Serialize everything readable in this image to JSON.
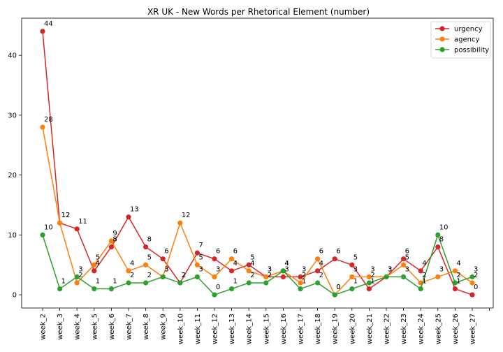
{
  "chart_data": {
    "type": "line",
    "title": "XR UK - New Words per Rhetorical Element (number)",
    "xlabel": "",
    "ylabel": "",
    "ylim": [
      -2.2,
      46.2
    ],
    "yticks": [
      0,
      10,
      20,
      30,
      40
    ],
    "grid": false,
    "legend_position": "top-right",
    "categories": [
      "week_2",
      "week_3",
      "week_4",
      "week_5",
      "week_6",
      "week_7",
      "week_8",
      "week_9",
      "week_10",
      "week_11",
      "week_12",
      "week_13",
      "week_14",
      "week_15",
      "week_16",
      "week_17",
      "week_18",
      "week_19",
      "week_20",
      "week_21",
      "week_22",
      "week_23",
      "week_24",
      "week_25",
      "week_26",
      "week_27"
    ],
    "series": [
      {
        "name": "urgency",
        "color": "#d62728",
        "values": [
          44,
          12,
          11,
          4,
          8,
          13,
          8,
          6,
          2,
          7,
          6,
          4,
          5,
          3,
          3,
          3,
          4,
          6,
          5,
          1,
          3,
          6,
          4,
          8,
          1,
          0
        ]
      },
      {
        "name": "agency",
        "color": "#ff7f0e",
        "values": [
          28,
          12,
          2,
          5,
          9,
          4,
          5,
          3,
          12,
          5,
          3,
          6,
          4,
          3,
          4,
          2,
          6,
          0,
          3,
          3,
          3,
          5,
          2,
          3,
          4,
          2
        ]
      },
      {
        "name": "possibility",
        "color": "#2ca02c",
        "values": [
          10,
          1,
          3,
          1,
          1,
          2,
          2,
          3,
          2,
          3,
          0,
          1,
          2,
          2,
          4,
          1,
          2,
          0,
          1,
          2,
          3,
          3,
          1,
          10,
          2,
          3
        ]
      }
    ]
  }
}
